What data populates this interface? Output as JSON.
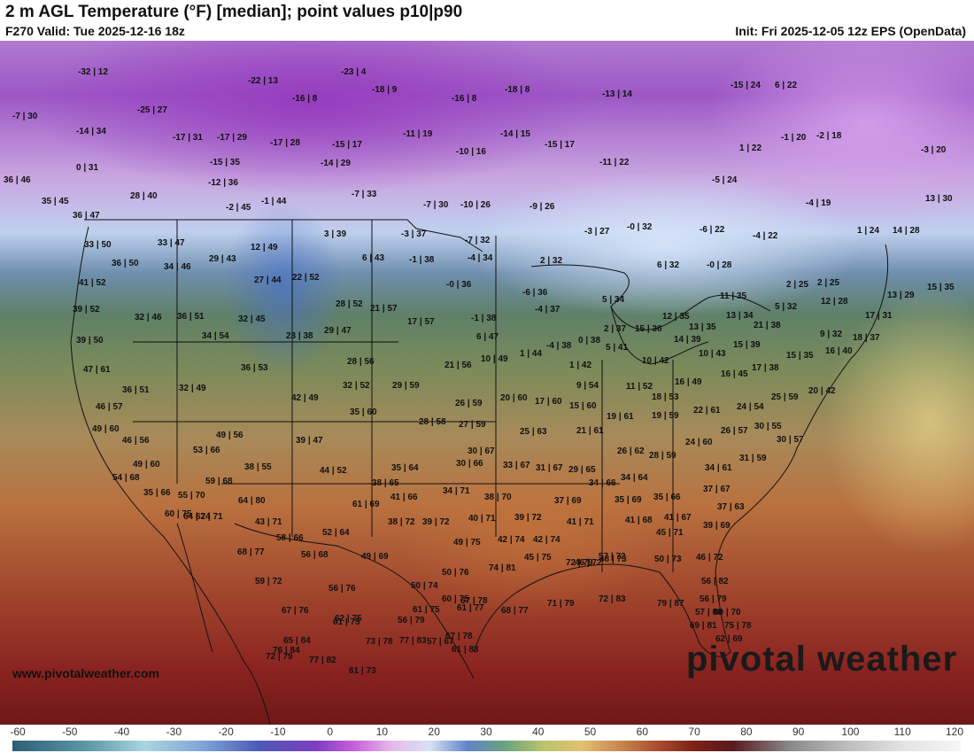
{
  "header": {
    "title": "2 m AGL Temperature (°F) [median]; point values p10|p90",
    "valid": "F270 Valid: Tue 2025-12-16 18z",
    "init": "Init: Fri 2025-12-05 12z EPS (OpenData)"
  },
  "branding": {
    "logo_text": "pivotal weather",
    "url": "www.pivotalweather.com"
  },
  "colorbar": {
    "labels": [
      "-60",
      "-50",
      "-40",
      "-30",
      "-20",
      "-10",
      "0",
      "10",
      "20",
      "30",
      "40",
      "50",
      "60",
      "70",
      "80",
      "90",
      "100",
      "110",
      "120"
    ]
  },
  "points": [
    "-32 | 12",
    "-23 | 4",
    "-22 | 13",
    "-18 | 9",
    "-18 | 8",
    "-16 | 8",
    "-13 | 14",
    "-16 | 8",
    "-15 | 24",
    "6 | 22",
    "-7 | 30",
    "-25 | 27",
    "-14 | 34",
    "-17 | 31",
    "-17 | 29",
    "-17 | 28",
    "-15 | 17",
    "-11 | 19",
    "-14 | 15",
    "-15 | 17",
    "1 | 22",
    "-1 | 20",
    "-2 | 18",
    "-3 | 20",
    "0 | 31",
    "-15 | 35",
    "-14 | 29",
    "-10 | 16",
    "-11 | 22",
    "-5 | 24",
    "36 | 46",
    "-12 | 36",
    "-7 | 33",
    "-4 | 19",
    "13 | 30",
    "28 | 40",
    "35 | 45",
    "-2 | 45",
    "-1 | 44",
    "-7 | 30",
    "-10 | 26",
    "-9 | 26",
    "36 | 47",
    "3 | 39",
    "-3 | 37",
    "-7 | 32",
    "-3 | 27",
    "-0 | 32",
    "-6 | 22",
    "-4 | 22",
    "1 | 24",
    "14 | 28",
    "33 | 50",
    "33 | 47",
    "12 | 49",
    "29 | 43",
    "6 | 43",
    "-1 | 38",
    "-4 | 34",
    "2 | 32",
    "6 | 32",
    "-0 | 28",
    "2 | 25",
    "36 | 50",
    "34 | 46",
    "22 | 52",
    "27 | 44",
    "-0 | 36",
    "-6 | 36",
    "2 | 25",
    "15 | 35",
    "41 | 52",
    "28 | 52",
    "21 | 57",
    "5 | 34",
    "11 | 35",
    "13 | 29",
    "12 | 28",
    "39 | 52",
    "32 | 46",
    "36 | 51",
    "32 | 45",
    "-1 | 38",
    "-4 | 37",
    "5 | 32",
    "13 | 34",
    "17 | 31",
    "34 | 54",
    "17 | 57",
    "12 | 35",
    "21 | 38",
    "39 | 50",
    "23 | 38",
    "29 | 47",
    "6 | 47",
    "2 | 37",
    "15 | 36",
    "13 | 35",
    "9 | 32",
    "18 | 37",
    "-4 | 38",
    "0 | 38",
    "14 | 39",
    "15 | 39",
    "47 | 61",
    "36 | 53",
    "28 | 56",
    "21 | 56",
    "10 | 49",
    "1 | 44",
    "5 | 41",
    "10 | 43",
    "16 | 40",
    "1 | 42",
    "10 | 42",
    "15 | 35",
    "36 | 51",
    "32 | 49",
    "32 | 52",
    "29 | 59",
    "9 | 54",
    "11 | 52",
    "16 | 49",
    "16 | 45",
    "17 | 38",
    "46 | 57",
    "42 | 49",
    "26 | 59",
    "20 | 60",
    "17 | 60",
    "18 | 53",
    "25 | 59",
    "20 | 42",
    "49 | 60",
    "35 | 60",
    "28 | 58",
    "27 | 59",
    "15 | 60",
    "19 | 61",
    "19 | 59",
    "22 | 61",
    "24 | 54",
    "30 | 55",
    "46 | 56",
    "49 | 56",
    "39 | 47",
    "25 | 63",
    "21 | 61",
    "26 | 57",
    "30 | 57",
    "53 | 66",
    "38 | 55",
    "30 | 67",
    "26 | 62",
    "28 | 59",
    "24 | 60",
    "31 | 59",
    "49 | 60",
    "44 | 52",
    "35 | 64",
    "30 | 66",
    "33 | 67",
    "31 | 67",
    "29 | 65",
    "34 | 61",
    "54 | 68",
    "59 | 68",
    "38 | 65",
    "34 | 71",
    "34 | 66",
    "34 | 64",
    "37 | 67",
    "35 | 66",
    "55 | 70",
    "64 | 80",
    "61 | 69",
    "41 | 66",
    "38 | 70",
    "37 | 69",
    "35 | 69",
    "35 | 66",
    "37 | 63",
    "60 | 75",
    "64 | 74",
    "62 | 71",
    "43 | 71",
    "38 | 72",
    "39 | 72",
    "40 | 71",
    "39 | 72",
    "41 | 71",
    "41 | 68",
    "41 | 67",
    "39 | 69",
    "58 | 66",
    "52 | 64",
    "49 | 75",
    "42 | 74",
    "42 | 74",
    "45 | 71",
    "68 | 77",
    "56 | 68",
    "49 | 69",
    "50 | 76",
    "45 | 75",
    "46 | 72",
    "48 | 73",
    "50 | 73",
    "46 | 72",
    "72 | 79",
    "59 | 72",
    "56 | 76",
    "50 | 74",
    "60 | 75",
    "74 | 81",
    "57 | 72",
    "56 | 82",
    "56 | 79",
    "57 | 80",
    "67 | 76",
    "62 | 75",
    "61 | 75",
    "61 | 77",
    "67 | 78",
    "76 | 84",
    "61 | 75",
    "56 | 79",
    "61 | 83",
    "67 | 78",
    "68 | 77",
    "71 | 79",
    "72 | 83",
    "79 | 87",
    "60 | 70",
    "65 | 84",
    "73 | 78",
    "77 | 83",
    "57 | 67",
    "69 | 81",
    "75 | 78",
    "62 | 69",
    "72 | 79",
    "77 | 82",
    "61 | 73"
  ]
}
